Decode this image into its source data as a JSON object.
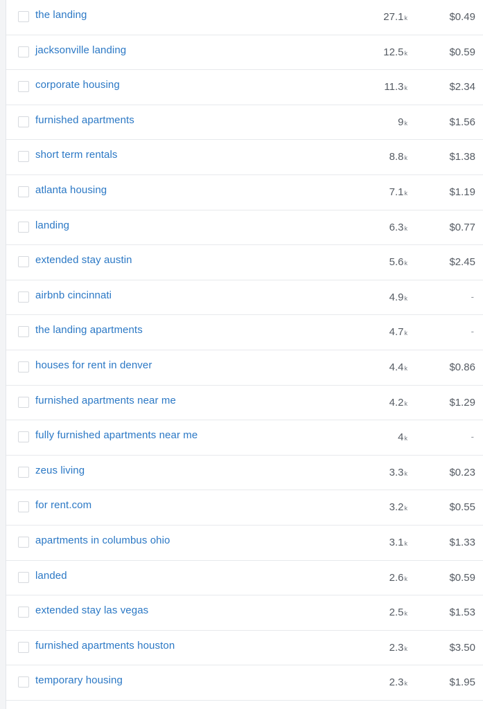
{
  "keywords": [
    {
      "keyword": "the landing",
      "volume": "27.1",
      "unit": "k",
      "cpc": "$0.49"
    },
    {
      "keyword": "jacksonville landing",
      "volume": "12.5",
      "unit": "k",
      "cpc": "$0.59"
    },
    {
      "keyword": "corporate housing",
      "volume": "11.3",
      "unit": "k",
      "cpc": "$2.34"
    },
    {
      "keyword": "furnished apartments",
      "volume": "9",
      "unit": "k",
      "cpc": "$1.56"
    },
    {
      "keyword": "short term rentals",
      "volume": "8.8",
      "unit": "k",
      "cpc": "$1.38"
    },
    {
      "keyword": "atlanta housing",
      "volume": "7.1",
      "unit": "k",
      "cpc": "$1.19"
    },
    {
      "keyword": "landing",
      "volume": "6.3",
      "unit": "k",
      "cpc": "$0.77"
    },
    {
      "keyword": "extended stay austin",
      "volume": "5.6",
      "unit": "k",
      "cpc": "$2.45"
    },
    {
      "keyword": "airbnb cincinnati",
      "volume": "4.9",
      "unit": "k",
      "cpc": "-"
    },
    {
      "keyword": "the landing apartments",
      "volume": "4.7",
      "unit": "k",
      "cpc": "-"
    },
    {
      "keyword": "houses for rent in denver",
      "volume": "4.4",
      "unit": "k",
      "cpc": "$0.86"
    },
    {
      "keyword": "furnished apartments near me",
      "volume": "4.2",
      "unit": "k",
      "cpc": "$1.29"
    },
    {
      "keyword": "fully furnished apartments near me",
      "volume": "4",
      "unit": "k",
      "cpc": "-"
    },
    {
      "keyword": "zeus living",
      "volume": "3.3",
      "unit": "k",
      "cpc": "$0.23"
    },
    {
      "keyword": "for rent.com",
      "volume": "3.2",
      "unit": "k",
      "cpc": "$0.55"
    },
    {
      "keyword": "apartments in columbus ohio",
      "volume": "3.1",
      "unit": "k",
      "cpc": "$1.33"
    },
    {
      "keyword": "landed",
      "volume": "2.6",
      "unit": "k",
      "cpc": "$0.59"
    },
    {
      "keyword": "extended stay las vegas",
      "volume": "2.5",
      "unit": "k",
      "cpc": "$1.53"
    },
    {
      "keyword": "furnished apartments houston",
      "volume": "2.3",
      "unit": "k",
      "cpc": "$3.50"
    },
    {
      "keyword": "temporary housing",
      "volume": "2.3",
      "unit": "k",
      "cpc": "$1.95"
    }
  ],
  "colors": {
    "link": "#2b78c5",
    "text": "#555b63",
    "divider": "#e7e9ec"
  }
}
